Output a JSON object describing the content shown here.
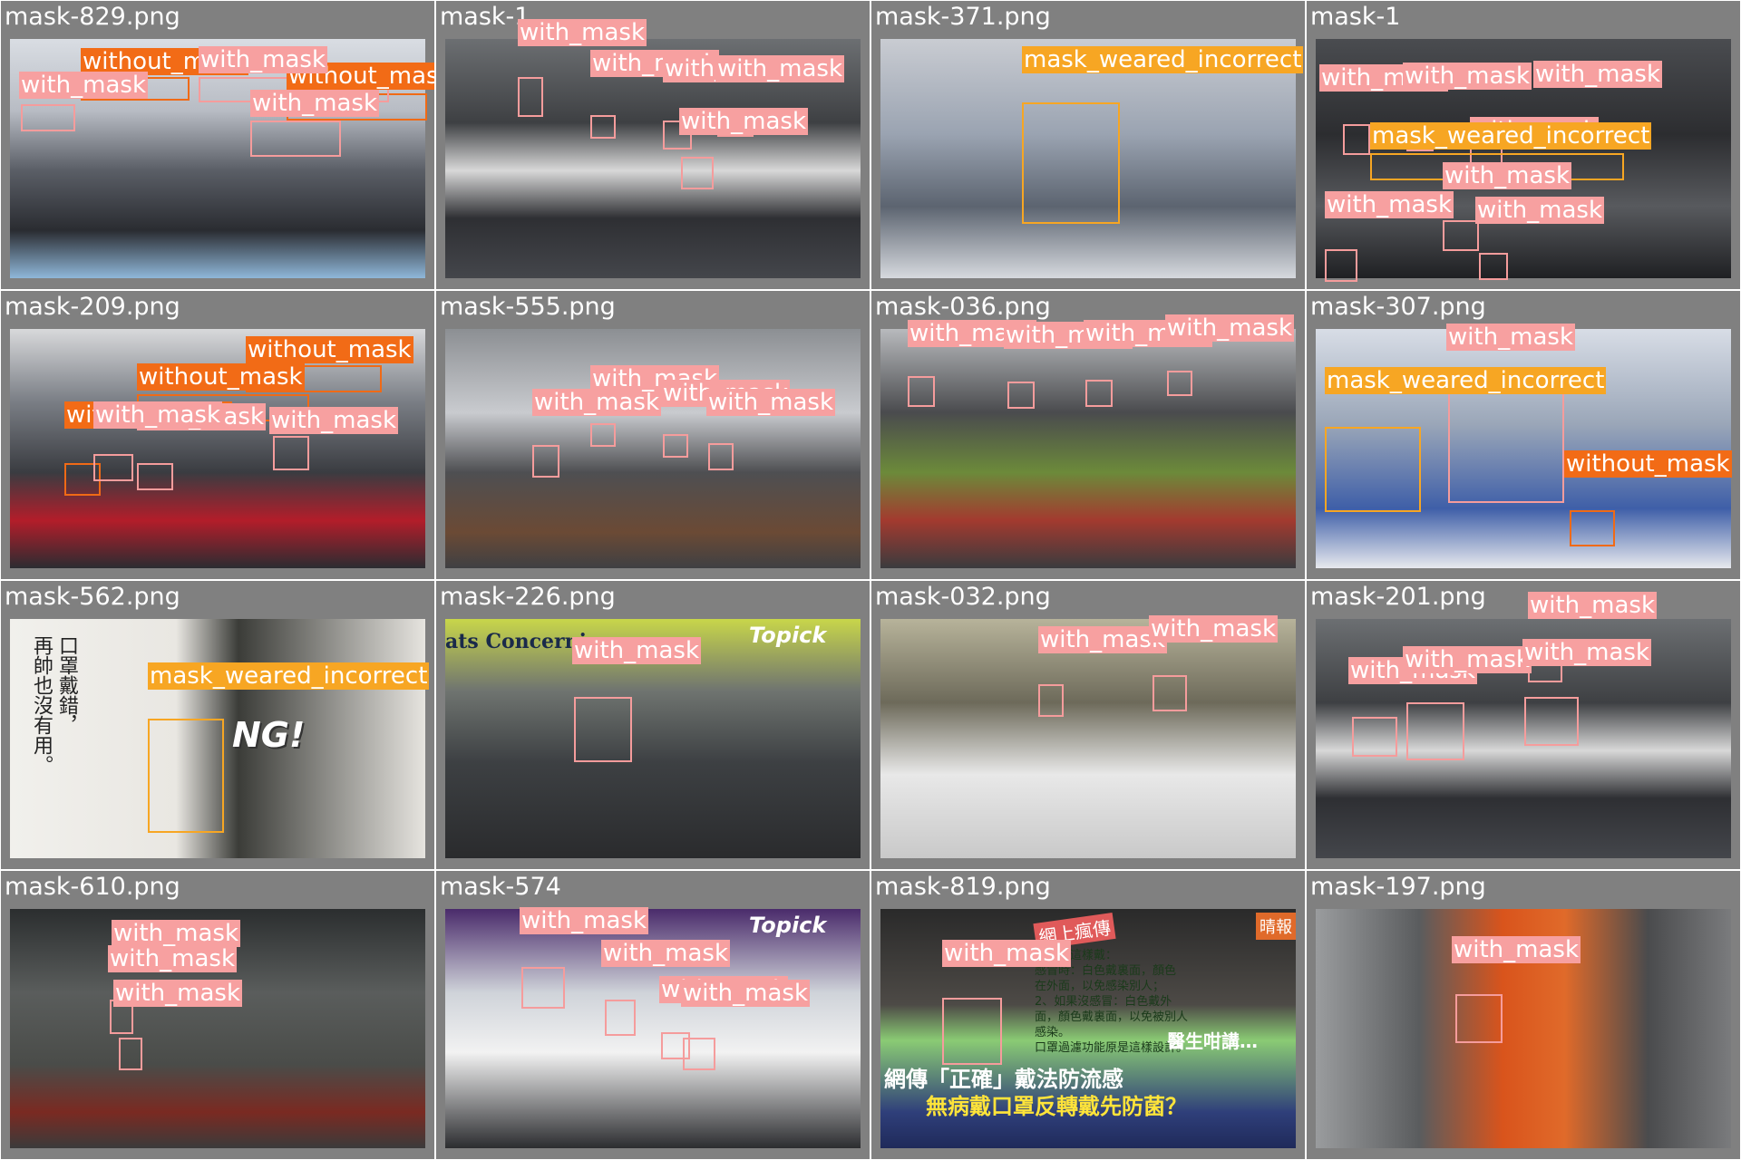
{
  "colors": {
    "background": "#808080",
    "with_mask": "#f7a0a0",
    "without_mask": "#f26b16",
    "mask_weared_incorrect": "#f7a623"
  },
  "labels": {
    "with_mask": "with_mask",
    "without_mask": "without_mask",
    "mask_weared_incorrect": "mask_weared_incorrect"
  },
  "tiles": [
    {
      "title": "mask-829.png",
      "scene": "crowd-with-blue-masks"
    },
    {
      "title": "mask-1",
      "scene": "street-crowd"
    },
    {
      "title": "mask-371.png",
      "scene": "pharmacy-man-adjusting-mask"
    },
    {
      "title": "mask-1",
      "scene": "dense-crowd"
    },
    {
      "title": "mask-209.png",
      "scene": "crowd-in-winter-coats"
    },
    {
      "title": "mask-555.png",
      "scene": "station-exit"
    },
    {
      "title": "mask-036.png",
      "scene": "shopping-carts"
    },
    {
      "title": "mask-307.png",
      "scene": "men-with-black-masks"
    },
    {
      "title": "mask-562.png",
      "scene": "ad-man-with-mask-below-nose"
    },
    {
      "title": "mask-226.png",
      "scene": "press-conference-photos"
    },
    {
      "title": "mask-032.png",
      "scene": "store-with-mask-boxes"
    },
    {
      "title": "mask-201.png",
      "scene": "street-crowd"
    },
    {
      "title": "mask-610.png",
      "scene": "train-station"
    },
    {
      "title": "mask-574",
      "scene": "press-conference-pipes"
    },
    {
      "title": "mask-819.png",
      "scene": "tv-news-graphic"
    },
    {
      "title": "mask-197.png",
      "scene": "person-with-orange-umbrella"
    }
  ],
  "overlays": {
    "mask_562_vertical_text": [
      "口罩戴錯，",
      "再帥也沒有用。"
    ],
    "mask_562_ng": "NG!",
    "mask_226_banner": "ats Concerning",
    "mask_226_logo": "Topick",
    "mask_574_logo": "Topick",
    "mask_819_corner": "晴報",
    "mask_819_headline_1": "網傳「正確」戴法防流感",
    "mask_819_headline_2": "無病戴口罩反轉戴先防菌？",
    "mask_819_doctor": "醫生咁講…",
    "mask_819_heading": "網上瘋傳",
    "mask_819_lines": [
      "口罩要這樣戴：",
      "感冒時：白色戴裏面，顏色",
      "在外面，以免感染別人；",
      "2、如果沒感冒：白色戴外",
      "面，顏色戴裏面，以免被別人",
      "感染。",
      "口罩過濾功能原是這樣設計。"
    ]
  }
}
